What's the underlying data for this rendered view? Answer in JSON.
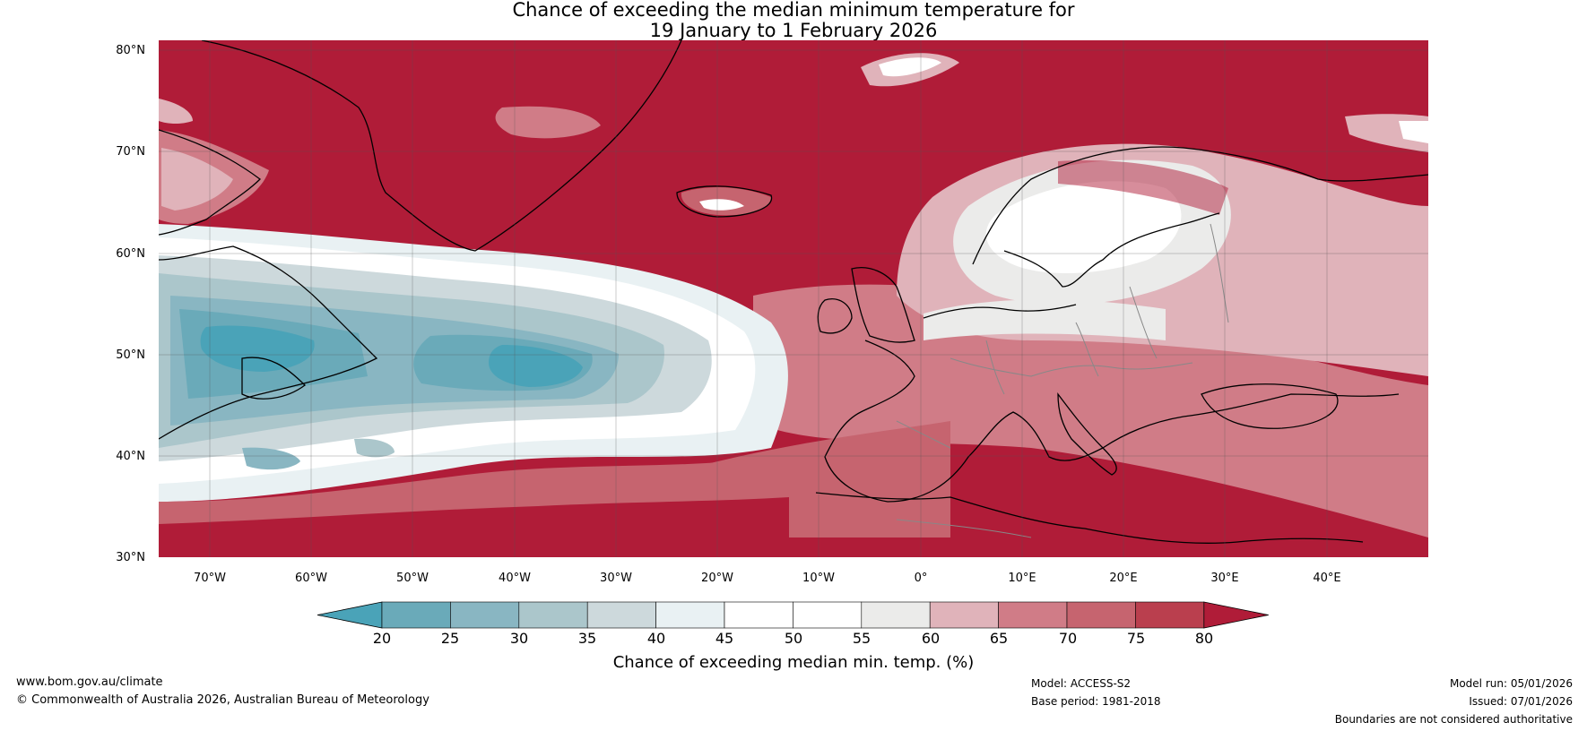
{
  "title": {
    "line1": "Chance of exceeding the median minimum temperature for",
    "line2": "19 January to 1 February 2026"
  },
  "map": {
    "lat_labels": [
      "80°N",
      "70°N",
      "60°N",
      "50°N",
      "40°N",
      "30°N"
    ],
    "lon_labels": [
      "70°W",
      "60°W",
      "50°W",
      "40°W",
      "30°W",
      "20°W",
      "10°W",
      "0°",
      "10°E",
      "20°E",
      "30°E",
      "40°E"
    ],
    "lat_range": [
      30,
      81
    ],
    "lon_range": [
      -75,
      50
    ]
  },
  "colorbar": {
    "ticks": [
      "20",
      "25",
      "30",
      "35",
      "40",
      "45",
      "50",
      "55",
      "60",
      "65",
      "70",
      "75",
      "80"
    ],
    "colors": [
      "#4aa3b8",
      "#6aaab9",
      "#89b6c2",
      "#abc6cb",
      "#cdd9dc",
      "#e9f1f3",
      "#ffffff",
      "#ffffff",
      "#ebebea",
      "#e0b3ba",
      "#d07c87",
      "#c6646f",
      "#ba3f4e",
      "#b01c38"
    ],
    "label": "Chance of exceeding median min. temp. (%)"
  },
  "footer": {
    "website": "www.bom.gov.au/climate",
    "copyright": "© Commonwealth of Australia 2026, Australian Bureau of Meteorology",
    "model": "Model: ACCESS-S2",
    "base_period": "Base period: 1981-2018",
    "model_run": "Model run: 05/01/2026",
    "issued": "Issued: 07/01/2026",
    "boundaries": "Boundaries are not considered authoritative"
  }
}
